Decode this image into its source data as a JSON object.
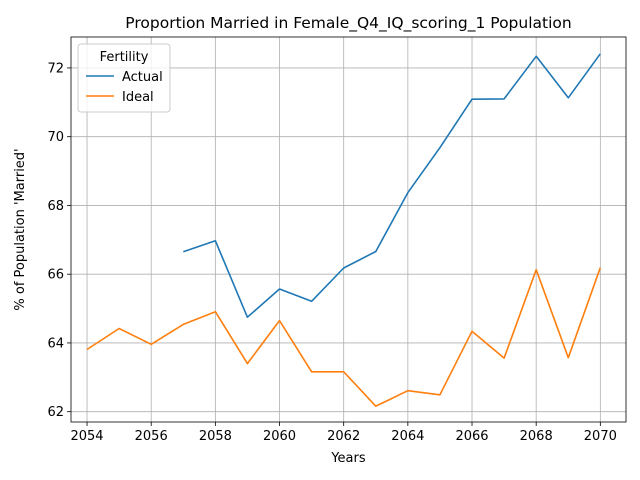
{
  "chart_data": {
    "type": "line",
    "title": "Proportion Married in Female_Q4_IQ_scoring_1 Population",
    "xlabel": "Years",
    "ylabel": "% of Population 'Married'",
    "xlim": [
      2053.5,
      2070.8
    ],
    "ylim": [
      61.7,
      72.9
    ],
    "xticks": [
      2054,
      2056,
      2058,
      2060,
      2062,
      2064,
      2066,
      2068,
      2070
    ],
    "yticks": [
      62,
      64,
      66,
      68,
      70,
      72
    ],
    "grid": true,
    "legend": {
      "title": "Fertility",
      "placement": "top-left"
    },
    "series": [
      {
        "name": "Actual",
        "color": "#1f77b4",
        "x": [
          2057,
          2058,
          2059,
          2060,
          2061,
          2062,
          2063,
          2064,
          2065,
          2066,
          2067,
          2068,
          2069,
          2070
        ],
        "values": [
          66.65,
          66.97,
          64.75,
          65.57,
          65.21,
          66.18,
          66.66,
          68.37,
          69.68,
          71.09,
          71.1,
          72.34,
          71.13,
          72.41
        ]
      },
      {
        "name": "Ideal",
        "color": "#ff7f0e",
        "x": [
          2054,
          2055,
          2056,
          2057,
          2058,
          2059,
          2060,
          2061,
          2062,
          2063,
          2064,
          2065,
          2066,
          2067,
          2068,
          2069,
          2070
        ],
        "values": [
          63.81,
          64.42,
          63.96,
          64.54,
          64.91,
          63.4,
          64.65,
          63.16,
          63.16,
          62.16,
          62.61,
          62.49,
          64.34,
          63.56,
          66.13,
          63.57,
          66.19
        ]
      }
    ]
  }
}
